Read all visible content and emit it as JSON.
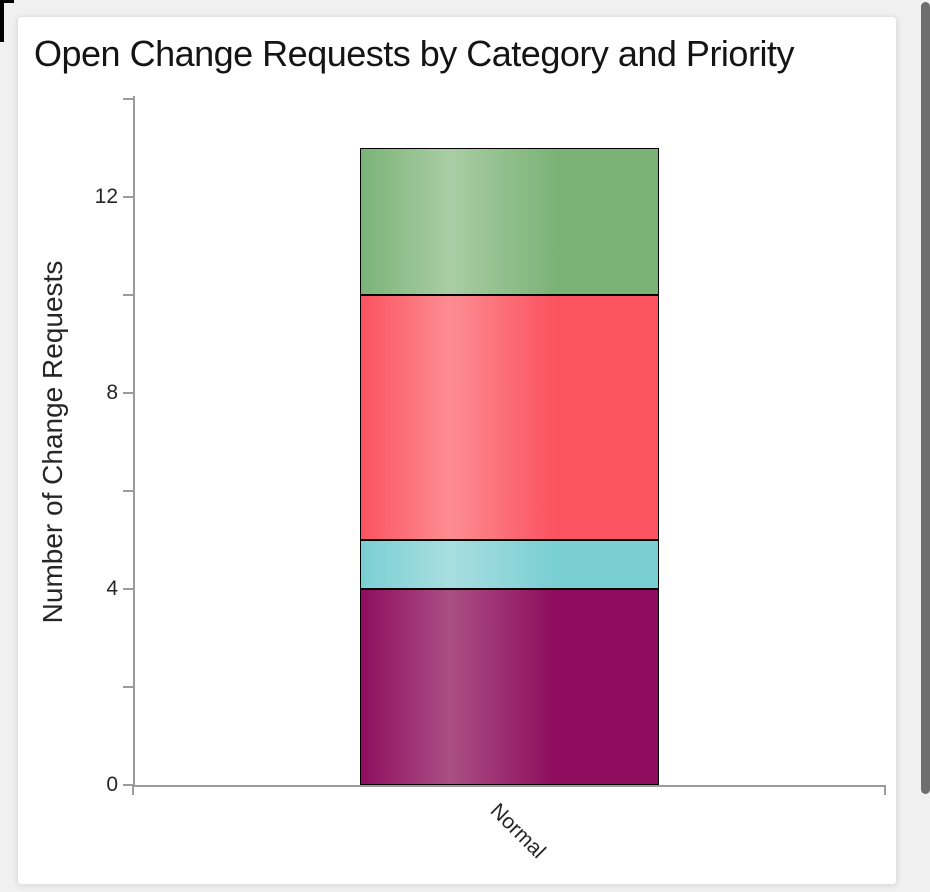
{
  "window": {
    "background_color": "#f0f0f0",
    "card_background": "#ffffff",
    "scrollbar_thumb_color": "#6e6e6e"
  },
  "chart_data": {
    "type": "bar",
    "stacked": true,
    "title": "Open Change Requests by Category and Priority",
    "categories": [
      "Normal"
    ],
    "series": [
      {
        "name": "segment-bottom-purple",
        "color": "#8e0d5e",
        "color_light": "#aa4f85",
        "values": [
          4
        ]
      },
      {
        "name": "segment-cyan",
        "color": "#7acfd3",
        "color_light": "#a8dee0",
        "values": [
          1
        ]
      },
      {
        "name": "segment-red",
        "color": "#fc5360",
        "color_light": "#fd8d92",
        "values": [
          5
        ]
      },
      {
        "name": "segment-top-green",
        "color": "#7bb377",
        "color_light": "#aacda5",
        "values": [
          3
        ]
      }
    ],
    "total": 13,
    "xlabel": "",
    "ylabel": "Number of Change Requests",
    "ylim": [
      0,
      14
    ],
    "y_ticks": [
      0,
      2,
      4,
      6,
      8,
      10,
      12,
      14
    ],
    "y_labeled_ticks": [
      0,
      4,
      8,
      12
    ],
    "x_tick_label_rotation_deg": 45,
    "legend": "none",
    "grid": false,
    "bar_border_color": "#000000",
    "axis_color": "#9b9b9b",
    "text_color": "#262626"
  }
}
